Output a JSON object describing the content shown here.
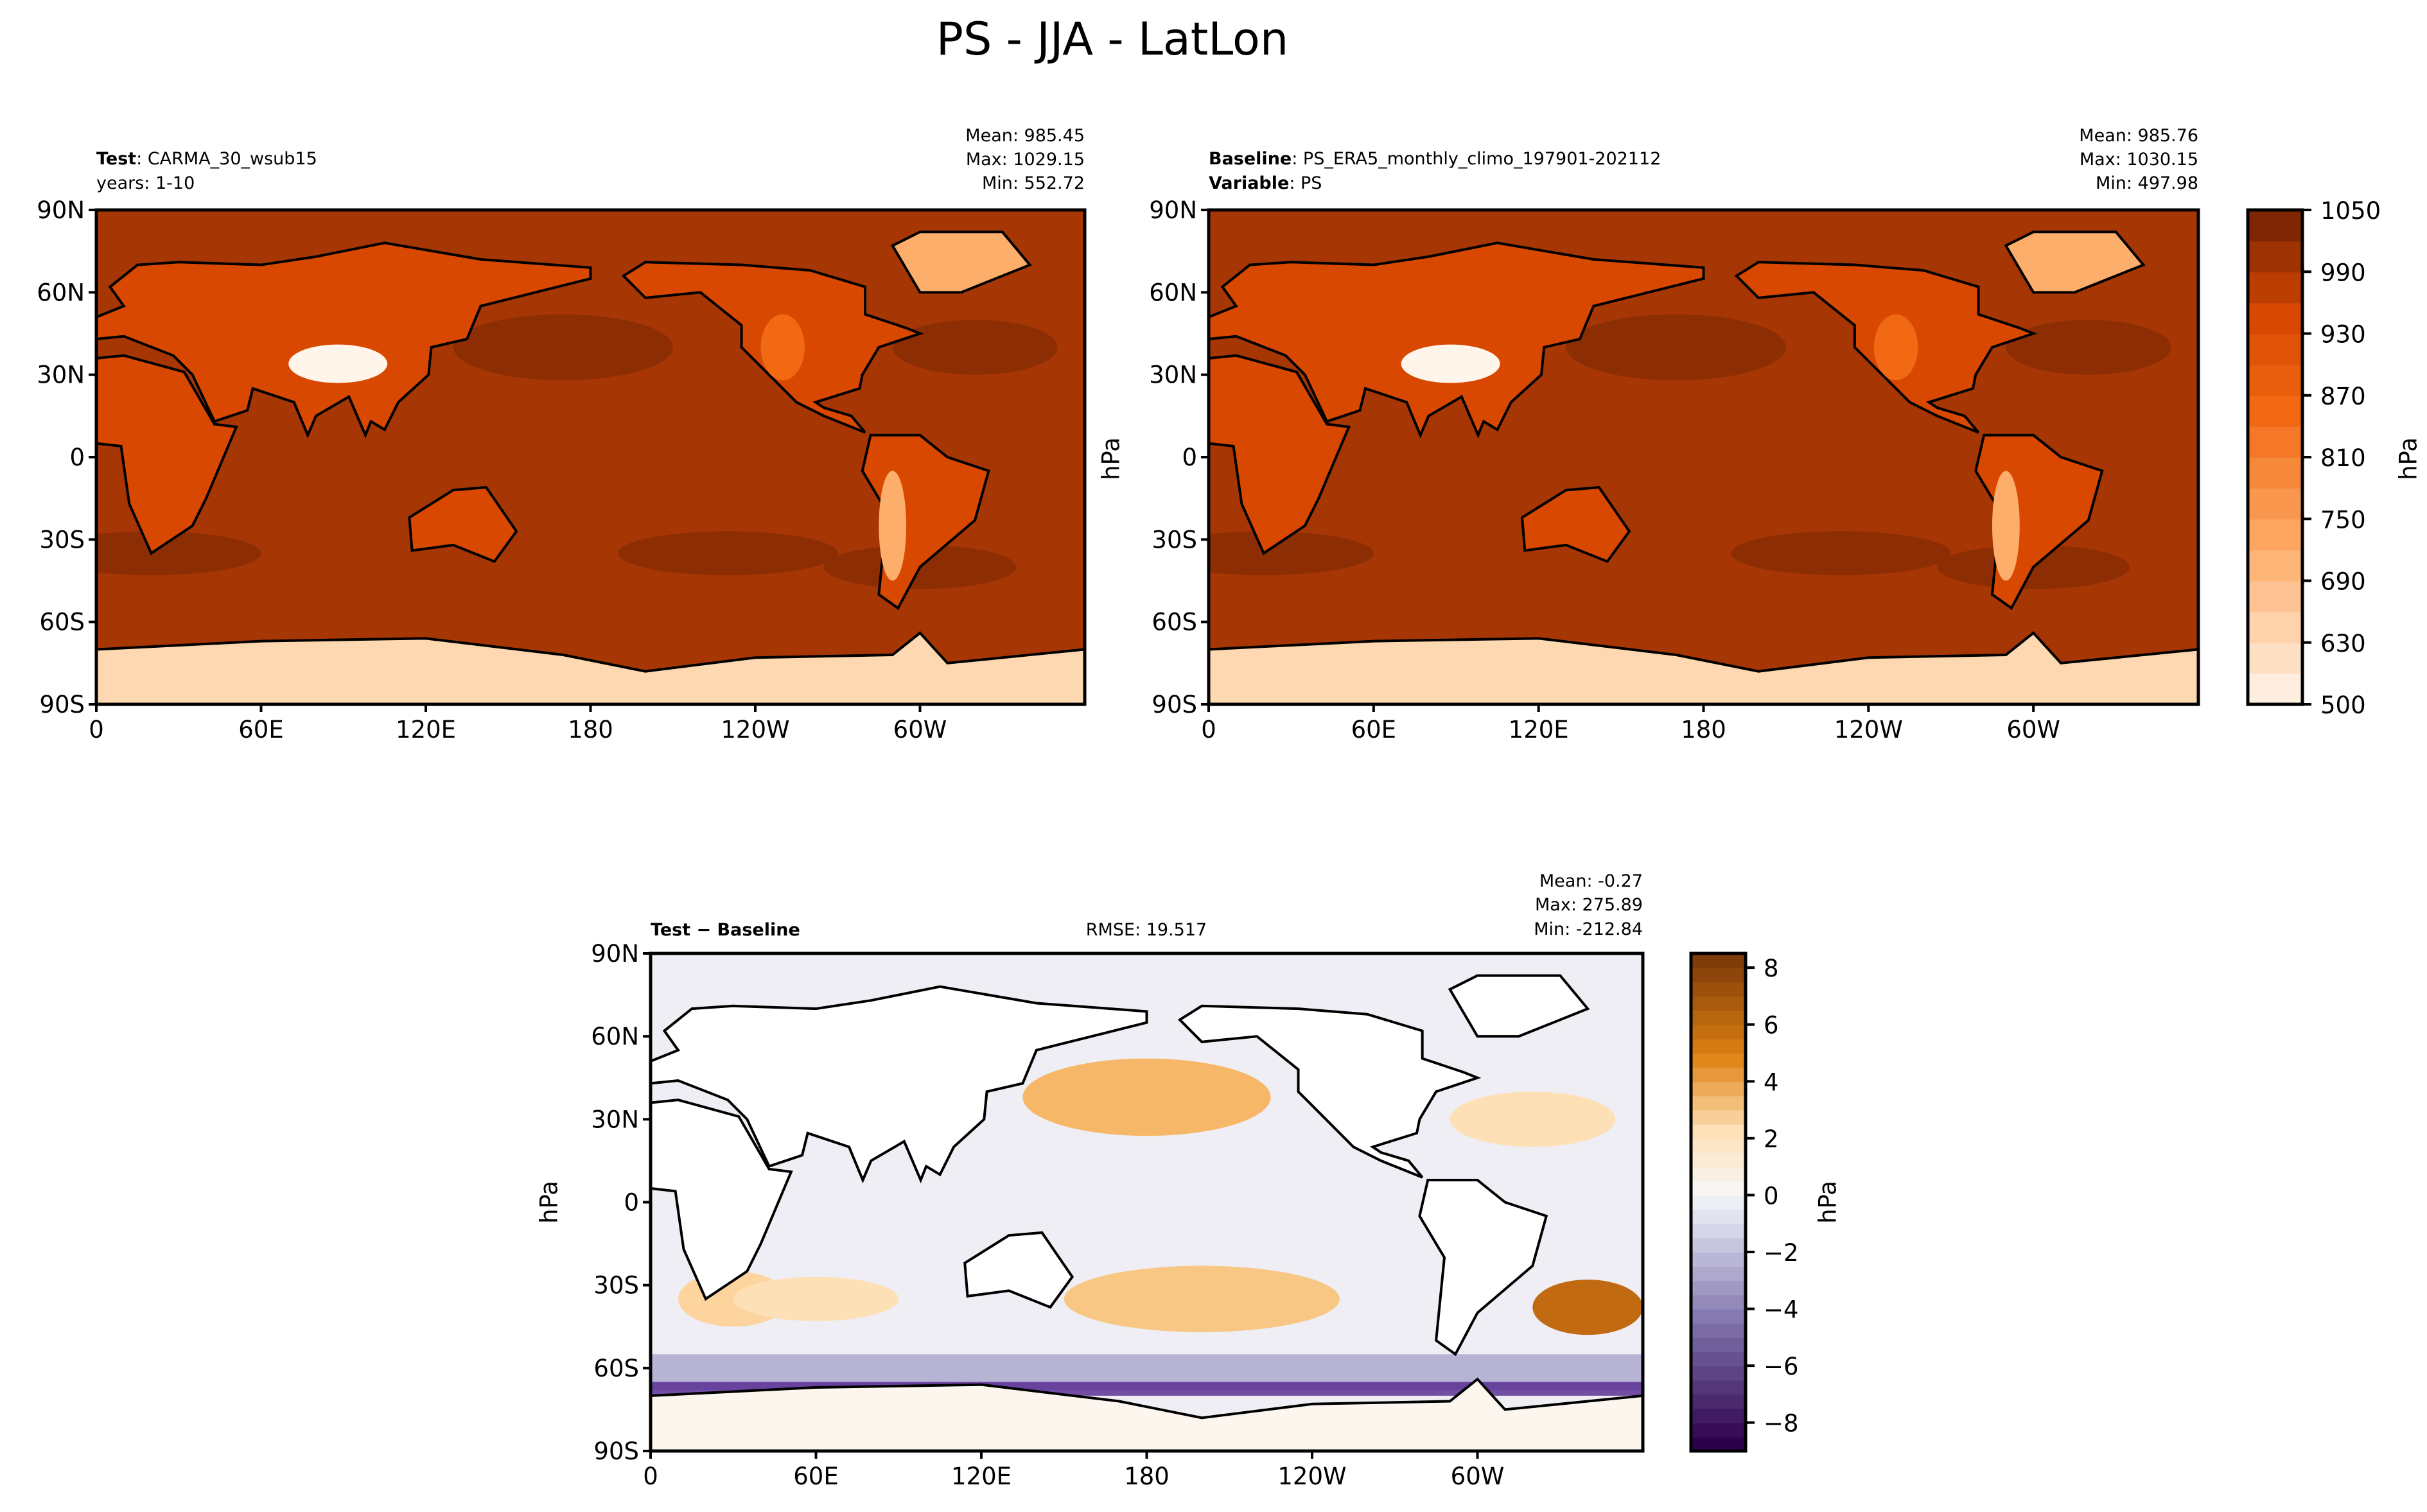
{
  "figure_title": "PS - JJA - LatLon",
  "axes": {
    "lat_ticks": [
      "90N",
      "60N",
      "30N",
      "0",
      "30S",
      "60S",
      "90S"
    ],
    "lat_values": [
      90,
      60,
      30,
      0,
      -30,
      -60,
      -90
    ],
    "lon_ticks": [
      "0",
      "60E",
      "120E",
      "180",
      "120W",
      "60W"
    ],
    "lon_values": [
      0,
      60,
      120,
      180,
      240,
      300
    ]
  },
  "panels": {
    "test": {
      "label_bold": "Test",
      "label_text": "CARMA_30_wsub15",
      "years": "years: 1-10",
      "mean": "Mean: 985.45",
      "max": "Max: 1029.15",
      "min": "Min: 552.72"
    },
    "baseline": {
      "label_bold": "Baseline",
      "label_text": "PS_ERA5_monthly_climo_197901-202112",
      "variable_bold": "Variable",
      "variable_text": "PS",
      "mean": "Mean: 985.76",
      "max": "Max: 1030.15",
      "min": "Min: 497.98",
      "unit": "hPa"
    },
    "diff": {
      "label": "Test − Baseline",
      "rmse": "RMSE: 19.517",
      "mean": "Mean: -0.27",
      "max": "Max: 275.89",
      "min": "Min: -212.84",
      "unit": "hPa"
    }
  },
  "colorbars": {
    "top": {
      "ticks": [
        "1050",
        "990",
        "930",
        "870",
        "810",
        "750",
        "690",
        "630",
        "500"
      ],
      "unit": "hPa",
      "colormap": "Oranges",
      "bands": 16,
      "low": "#feeedf",
      "high": "#7f2704"
    },
    "bottom": {
      "ticks": [
        "8",
        "6",
        "4",
        "2",
        "0",
        "−2",
        "−4",
        "−6",
        "−8"
      ],
      "tick_values": [
        8,
        6,
        4,
        2,
        0,
        -2,
        -4,
        -6,
        -8
      ],
      "range": [
        -9,
        8.5
      ],
      "unit": "hPa",
      "colormap": "PuOr_r",
      "low": "#2d004b",
      "high": "#7f3b08"
    }
  },
  "chart_data": [
    {
      "type": "heatmap",
      "title": "Test: CARMA_30_wsub15",
      "xlim": [
        0,
        360
      ],
      "ylim": [
        -90,
        90
      ],
      "stats": {
        "mean": 985.45,
        "max": 1029.15,
        "min": 552.72
      },
      "color_range": [
        500,
        1050
      ]
    },
    {
      "type": "heatmap",
      "title": "Baseline: PS_ERA5_monthly_climo_197901-202112",
      "xlim": [
        0,
        360
      ],
      "ylim": [
        -90,
        90
      ],
      "stats": {
        "mean": 985.76,
        "max": 1030.15,
        "min": 497.98
      },
      "color_range": [
        500,
        1050
      ]
    },
    {
      "type": "heatmap",
      "title": "Test − Baseline",
      "xlim": [
        0,
        360
      ],
      "ylim": [
        -90,
        90
      ],
      "stats": {
        "mean": -0.27,
        "max": 275.89,
        "min": -212.84,
        "rmse": 19.517
      },
      "color_range": [
        -9,
        8.5
      ]
    }
  ]
}
